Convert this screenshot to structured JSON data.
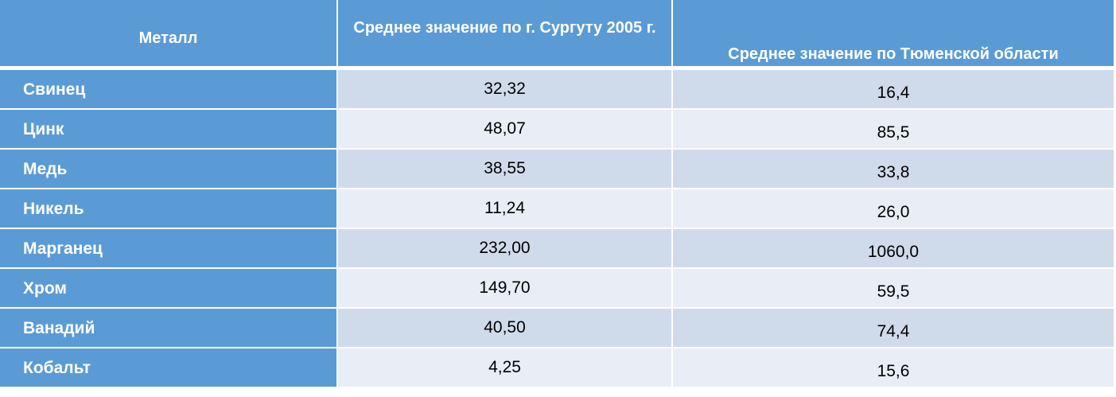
{
  "table": {
    "headers": {
      "metal": "Металл",
      "surgut": "Среднее значение по г. Сургуту 2005 г.",
      "tyumen": "Среднее значение по Тюменской области"
    },
    "rows": [
      {
        "metal": "Свинец",
        "surgut": "32,32",
        "tyumen": "16,4"
      },
      {
        "metal": "Цинк",
        "surgut": "48,07",
        "tyumen": "85,5"
      },
      {
        "metal": "Медь",
        "surgut": "38,55",
        "tyumen": "33,8"
      },
      {
        "metal": "Никель",
        "surgut": "11,24",
        "tyumen": "26,0"
      },
      {
        "metal": "Марганец",
        "surgut": "232,00",
        "tyumen": "1060,0"
      },
      {
        "metal": "Хром",
        "surgut": "149,70",
        "tyumen": "59,5"
      },
      {
        "metal": "Ванадий",
        "surgut": "40,50",
        "tyumen": "74,4"
      },
      {
        "metal": "Кобальт",
        "surgut": "4,25",
        "tyumen": "15,6"
      }
    ]
  },
  "colors": {
    "header_bg": "#5b9bd5",
    "row_dark": "#cfdbeb",
    "row_light": "#e8edf6"
  }
}
